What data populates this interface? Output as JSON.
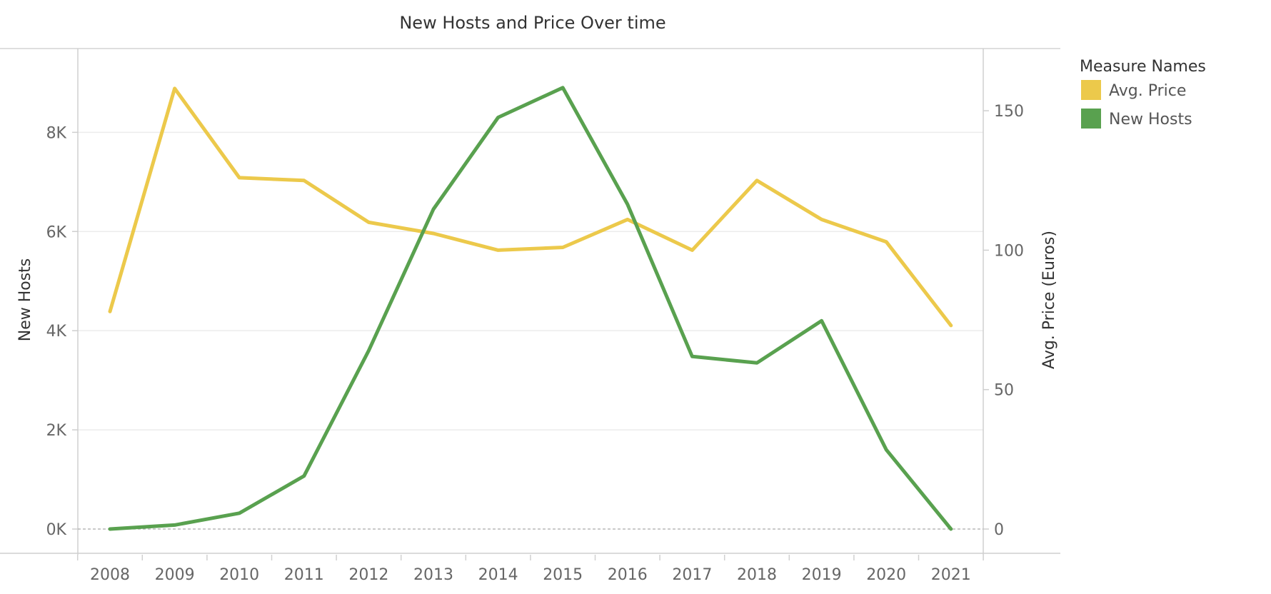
{
  "chart_data": {
    "type": "line",
    "title": "New Hosts and Price Over time",
    "x": [
      "2008",
      "2009",
      "2010",
      "2011",
      "2012",
      "2013",
      "2014",
      "2015",
      "2016",
      "2017",
      "2018",
      "2019",
      "2020",
      "2021"
    ],
    "series": [
      {
        "name": "Avg. Price",
        "axis": "right",
        "color": "#ECC94B",
        "values": [
          78,
          158,
          126,
          125,
          110,
          106,
          100,
          101,
          111,
          100,
          125,
          111,
          103,
          73
        ]
      },
      {
        "name": "New Hosts",
        "axis": "left",
        "color": "#59A14F",
        "values": [
          0,
          80,
          320,
          1070,
          3600,
          6450,
          8300,
          8900,
          6550,
          3480,
          3350,
          4200,
          1600,
          0
        ]
      }
    ],
    "y_left": {
      "label": "New Hosts",
      "ticks": [
        "0K",
        "2K",
        "4K",
        "6K",
        "8K"
      ],
      "tick_values": [
        0,
        2000,
        4000,
        6000,
        8000
      ],
      "range": [
        0,
        9200
      ]
    },
    "y_right": {
      "label": "Avg. Price (Euros)",
      "ticks": [
        "0",
        "50",
        "100",
        "150"
      ],
      "tick_values": [
        0,
        50,
        100,
        150
      ],
      "range": [
        0,
        163.6
      ]
    },
    "grid": true,
    "legend": {
      "title": "Measure Names",
      "placement": "right"
    }
  }
}
